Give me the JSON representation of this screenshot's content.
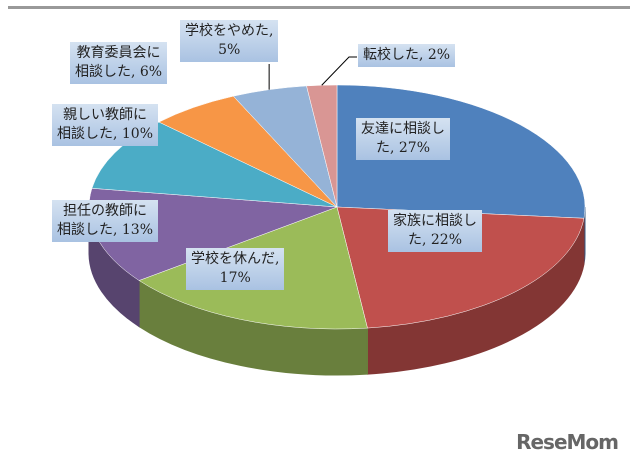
{
  "chart_data": {
    "type": "pie",
    "style": "3d",
    "start": "top, clockwise",
    "slices": [
      {
        "label": "友達に相談した",
        "value": 27,
        "text": "友達に相談し\nた, 27%",
        "color": "#4f81bd"
      },
      {
        "label": "家族に相談した",
        "value": 22,
        "text": "家族に相談し\nた, 22%",
        "color": "#c0504d"
      },
      {
        "label": "学校を休んだ",
        "value": 17,
        "text": "学校を休んだ,\n17%",
        "color": "#9bbb59"
      },
      {
        "label": "担任の教師に相談した",
        "value": 13,
        "text": "担任の教師に\n相談した, 13%",
        "color": "#8064a2"
      },
      {
        "label": "親しい教師に相談した",
        "value": 10,
        "text": "親しい教師に\n相談した, 10%",
        "color": "#4bacc6"
      },
      {
        "label": "教育委員会に相談した",
        "value": 6,
        "text": "教育委員会に\n相談した, 6%",
        "color": "#f79646"
      },
      {
        "label": "学校をやめた",
        "value": 5,
        "text": "学校をやめた,\n5%",
        "color": "#95b3d7"
      },
      {
        "label": "転校した",
        "value": 2,
        "text": "転校した, 2%",
        "color": "#d99694"
      }
    ]
  },
  "watermark": "ReseMom"
}
